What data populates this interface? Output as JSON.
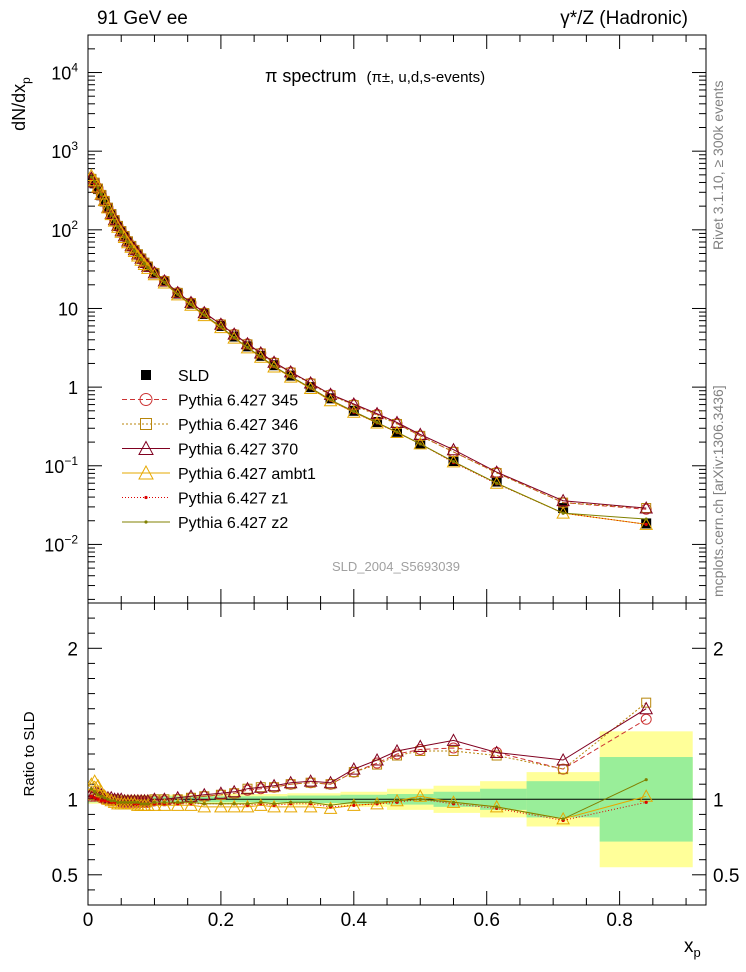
{
  "header": {
    "left": "91 GeV ee",
    "right": "γ*/Z (Hadronic)"
  },
  "side": {
    "rivet": "Rivet 3.1.10, ≥ 300k events",
    "mcplots": "mcplots.cern.ch [arXiv:1306.3436]"
  },
  "chart_data": [
    {
      "type": "line",
      "title_main": "π spectrum",
      "title_sub": "(π±, u,d,s-events)",
      "ylabel": "dN/dx",
      "ylabel_sub": "p",
      "yscale": "log",
      "ylim": [
        0.0018,
        30000
      ],
      "xlim": [
        0,
        0.93
      ],
      "watermark": "SLD_2004_S5693039",
      "legend_position": "middle-left",
      "yticks": [
        {
          "v": 10000,
          "base": "10",
          "exp": "4"
        },
        {
          "v": 1000,
          "base": "10",
          "exp": "3"
        },
        {
          "v": 100,
          "base": "10",
          "exp": "2"
        },
        {
          "v": 10,
          "base": "10",
          "exp": ""
        },
        {
          "v": 1,
          "base": "1",
          "exp": ""
        },
        {
          "v": 0.1,
          "base": "10",
          "exp": "−1"
        },
        {
          "v": 0.01,
          "base": "10",
          "exp": "−2"
        }
      ],
      "x": [
        0.005,
        0.01,
        0.015,
        0.02,
        0.025,
        0.03,
        0.035,
        0.04,
        0.045,
        0.05,
        0.055,
        0.06,
        0.065,
        0.07,
        0.075,
        0.08,
        0.085,
        0.09,
        0.1,
        0.115,
        0.135,
        0.155,
        0.175,
        0.2,
        0.22,
        0.24,
        0.26,
        0.28,
        0.305,
        0.335,
        0.365,
        0.4,
        0.435,
        0.465,
        0.5,
        0.55,
        0.615,
        0.715,
        0.84
      ],
      "series": [
        {
          "name": "SLD",
          "color": "#000000",
          "marker": "square",
          "dash": "",
          "values": [
            440,
            390,
            330,
            275,
            230,
            190,
            158,
            132,
            112,
            96,
            83,
            71,
            62,
            55,
            48.5,
            43,
            38,
            34,
            28,
            22,
            15.5,
            11.5,
            8.5,
            6.0,
            4.4,
            3.3,
            2.5,
            1.9,
            1.4,
            1.0,
            0.72,
            0.5,
            0.36,
            0.27,
            0.19,
            0.115,
            0.063,
            0.029,
            0.0185
          ]
        },
        {
          "name": "Pythia 6.427 345",
          "color": "#cc3333",
          "marker": "circle",
          "dash": "5,3",
          "values": [
            450,
            400,
            340,
            280,
            235,
            192,
            160,
            134,
            113,
            97,
            84,
            72,
            63,
            56,
            49.2,
            43.5,
            38.4,
            34.4,
            28.5,
            22.4,
            15.9,
            11.8,
            8.8,
            6.3,
            4.7,
            3.55,
            2.7,
            2.05,
            1.55,
            1.12,
            0.8,
            0.6,
            0.45,
            0.345,
            0.24,
            0.15,
            0.082,
            0.034,
            0.028
          ]
        },
        {
          "name": "Pythia 6.427 346",
          "color": "#b8860b",
          "marker": "square-open",
          "dash": "2,2",
          "values": [
            445,
            398,
            335,
            278,
            233,
            191,
            159,
            133,
            112,
            96.5,
            83.5,
            71.5,
            62.5,
            55.5,
            49,
            43.3,
            38.2,
            34.2,
            28.3,
            22.3,
            15.8,
            11.7,
            8.75,
            6.25,
            4.65,
            3.5,
            2.68,
            2.03,
            1.53,
            1.11,
            0.79,
            0.59,
            0.44,
            0.34,
            0.24,
            0.15,
            0.081,
            0.034,
            0.029
          ]
        },
        {
          "name": "Pythia 6.427 370",
          "color": "#800020",
          "marker": "triangle-open",
          "dash": "",
          "values": [
            455,
            405,
            345,
            282,
            237,
            193,
            161,
            135,
            114,
            97.5,
            84,
            72,
            63,
            56,
            49.2,
            43.5,
            38.4,
            34.3,
            28.5,
            22.4,
            15.9,
            11.9,
            8.85,
            6.3,
            4.72,
            3.56,
            2.72,
            2.07,
            1.56,
            1.13,
            0.81,
            0.61,
            0.46,
            0.355,
            0.25,
            0.16,
            0.083,
            0.036,
            0.029
          ]
        },
        {
          "name": "Pythia 6.427 ambt1",
          "color": "#e6a800",
          "marker": "triangle-open",
          "dash": "",
          "values": [
            490,
            420,
            350,
            285,
            235,
            190,
            156,
            129,
            108,
            93,
            80,
            68.5,
            60,
            53,
            46.5,
            41,
            36.3,
            32.3,
            26.8,
            21.1,
            14.9,
            11.0,
            8.1,
            5.7,
            4.2,
            3.15,
            2.4,
            1.8,
            1.34,
            0.96,
            0.67,
            0.48,
            0.35,
            0.265,
            0.19,
            0.112,
            0.06,
            0.025,
            0.018
          ]
        },
        {
          "name": "Pythia 6.427 z1",
          "color": "#dd0000",
          "marker": "dot",
          "dash": "1,2",
          "values": [
            450,
            395,
            330,
            272,
            228,
            188,
            155,
            129,
            110,
            94,
            81,
            69.5,
            60.5,
            53.5,
            47,
            41.5,
            36.7,
            32.8,
            27.2,
            21.4,
            15.1,
            11.2,
            8.2,
            5.8,
            4.25,
            3.18,
            2.42,
            1.82,
            1.36,
            0.97,
            0.68,
            0.48,
            0.35,
            0.265,
            0.19,
            0.11,
            0.059,
            0.025,
            0.018
          ]
        },
        {
          "name": "Pythia 6.427 z2",
          "color": "#808000",
          "marker": "dot",
          "dash": "",
          "values": [
            470,
            410,
            340,
            280,
            232,
            190,
            157,
            130,
            110,
            94.5,
            81.5,
            70,
            61,
            54,
            47.3,
            41.8,
            37,
            33,
            27.4,
            21.5,
            15.2,
            11.25,
            8.25,
            5.85,
            4.28,
            3.2,
            2.44,
            1.84,
            1.37,
            0.98,
            0.69,
            0.49,
            0.355,
            0.268,
            0.19,
            0.113,
            0.06,
            0.025,
            0.021
          ]
        }
      ]
    },
    {
      "type": "line",
      "ylabel": "Ratio to SLD",
      "xlabel": "x",
      "xlabel_sub": "p",
      "ylim": [
        0.3,
        2.3
      ],
      "xlim": [
        0,
        0.93
      ],
      "xticks": [
        {
          "v": 0,
          "label": "0"
        },
        {
          "v": 0.2,
          "label": "0.2"
        },
        {
          "v": 0.4,
          "label": "0.4"
        },
        {
          "v": 0.6,
          "label": "0.6"
        },
        {
          "v": 0.8,
          "label": "0.8"
        }
      ],
      "yticks": [
        {
          "v": 0.5,
          "label": "0.5"
        },
        {
          "v": 1,
          "label": "1"
        },
        {
          "v": 2,
          "label": "2"
        }
      ],
      "uncertainty_bands": [
        {
          "x0": 0.0,
          "x1": 0.1,
          "inner": 0.02,
          "outer": 0.03
        },
        {
          "x0": 0.1,
          "x1": 0.2,
          "inner": 0.02,
          "outer": 0.03
        },
        {
          "x0": 0.2,
          "x1": 0.3,
          "inner": 0.02,
          "outer": 0.035
        },
        {
          "x0": 0.3,
          "x1": 0.38,
          "inner": 0.025,
          "outer": 0.04
        },
        {
          "x0": 0.38,
          "x1": 0.45,
          "inner": 0.03,
          "outer": 0.05
        },
        {
          "x0": 0.45,
          "x1": 0.52,
          "inner": 0.035,
          "outer": 0.07
        },
        {
          "x0": 0.52,
          "x1": 0.59,
          "inner": 0.05,
          "outer": 0.09
        },
        {
          "x0": 0.59,
          "x1": 0.66,
          "inner": 0.07,
          "outer": 0.12
        },
        {
          "x0": 0.66,
          "x1": 0.77,
          "inner": 0.12,
          "outer": 0.18
        },
        {
          "x0": 0.77,
          "x1": 0.91,
          "inner": 0.28,
          "outer": 0.45
        }
      ],
      "x": [
        0.005,
        0.01,
        0.015,
        0.02,
        0.025,
        0.03,
        0.035,
        0.04,
        0.045,
        0.05,
        0.055,
        0.06,
        0.065,
        0.07,
        0.075,
        0.08,
        0.085,
        0.09,
        0.1,
        0.115,
        0.135,
        0.155,
        0.175,
        0.2,
        0.22,
        0.24,
        0.26,
        0.28,
        0.305,
        0.335,
        0.365,
        0.4,
        0.435,
        0.465,
        0.5,
        0.55,
        0.615,
        0.715,
        0.84
      ],
      "series": [
        {
          "name": "Pythia 6.427 345",
          "color": "#cc3333",
          "marker": "circle",
          "dash": "5,3",
          "values": [
            1.02,
            1.02,
            1.02,
            1.01,
            1.0,
            1.0,
            0.99,
            0.99,
            0.99,
            0.98,
            0.98,
            0.98,
            0.98,
            0.98,
            0.98,
            0.98,
            0.98,
            0.98,
            0.99,
            0.99,
            1.0,
            1.01,
            1.02,
            1.03,
            1.04,
            1.06,
            1.07,
            1.08,
            1.1,
            1.11,
            1.1,
            1.18,
            1.24,
            1.3,
            1.33,
            1.34,
            1.31,
            1.2,
            1.53
          ]
        },
        {
          "name": "Pythia 6.427 346",
          "color": "#b8860b",
          "marker": "square-open",
          "dash": "2,2",
          "values": [
            1.03,
            1.04,
            1.03,
            1.02,
            1.01,
            1.0,
            1.0,
            1.0,
            0.99,
            0.99,
            0.99,
            0.99,
            0.99,
            0.99,
            0.99,
            0.99,
            0.99,
            0.99,
            1.0,
            1.0,
            1.0,
            1.01,
            1.02,
            1.03,
            1.04,
            1.07,
            1.08,
            1.08,
            1.1,
            1.11,
            1.1,
            1.18,
            1.23,
            1.29,
            1.32,
            1.32,
            1.29,
            1.2,
            1.64
          ]
        },
        {
          "name": "Pythia 6.427 370",
          "color": "#800020",
          "marker": "triangle-open",
          "dash": "",
          "values": [
            1.04,
            1.05,
            1.04,
            1.03,
            1.02,
            1.01,
            1.01,
            1.0,
            1.0,
            1.0,
            0.99,
            0.99,
            0.99,
            0.99,
            0.99,
            0.99,
            0.99,
            0.99,
            1.0,
            1.0,
            1.01,
            1.02,
            1.03,
            1.04,
            1.05,
            1.07,
            1.08,
            1.09,
            1.11,
            1.12,
            1.11,
            1.2,
            1.26,
            1.32,
            1.35,
            1.39,
            1.31,
            1.26,
            1.6
          ]
        },
        {
          "name": "Pythia 6.427 ambt1",
          "color": "#e6a800",
          "marker": "triangle-open",
          "dash": "",
          "values": [
            1.1,
            1.12,
            1.09,
            1.05,
            1.02,
            1.0,
            0.99,
            0.98,
            0.97,
            0.97,
            0.97,
            0.97,
            0.97,
            0.97,
            0.96,
            0.96,
            0.96,
            0.96,
            0.96,
            0.96,
            0.96,
            0.96,
            0.95,
            0.95,
            0.95,
            0.95,
            0.96,
            0.95,
            0.95,
            0.95,
            0.94,
            0.96,
            0.97,
            0.99,
            1.02,
            0.98,
            0.95,
            0.87,
            1.02
          ]
        },
        {
          "name": "Pythia 6.427 z1",
          "color": "#dd0000",
          "marker": "dot",
          "dash": "1,2",
          "values": [
            1.02,
            1.01,
            1.0,
            0.99,
            0.99,
            0.99,
            0.98,
            0.98,
            0.98,
            0.98,
            0.98,
            0.98,
            0.98,
            0.97,
            0.97,
            0.97,
            0.97,
            0.97,
            0.97,
            0.97,
            0.97,
            0.97,
            0.97,
            0.97,
            0.97,
            0.96,
            0.97,
            0.96,
            0.97,
            0.97,
            0.95,
            0.96,
            0.97,
            0.98,
            1.0,
            0.97,
            0.94,
            0.86,
            0.98
          ]
        },
        {
          "name": "Pythia 6.427 z2",
          "color": "#808000",
          "marker": "dot",
          "dash": "",
          "values": [
            1.07,
            1.05,
            1.03,
            1.02,
            1.01,
            1.0,
            0.99,
            0.99,
            0.98,
            0.98,
            0.98,
            0.98,
            0.98,
            0.98,
            0.98,
            0.97,
            0.97,
            0.97,
            0.98,
            0.98,
            0.98,
            0.98,
            0.97,
            0.97,
            0.97,
            0.97,
            0.98,
            0.97,
            0.98,
            0.98,
            0.96,
            0.98,
            0.98,
            0.99,
            1.0,
            0.98,
            0.95,
            0.87,
            1.13
          ]
        }
      ]
    }
  ]
}
